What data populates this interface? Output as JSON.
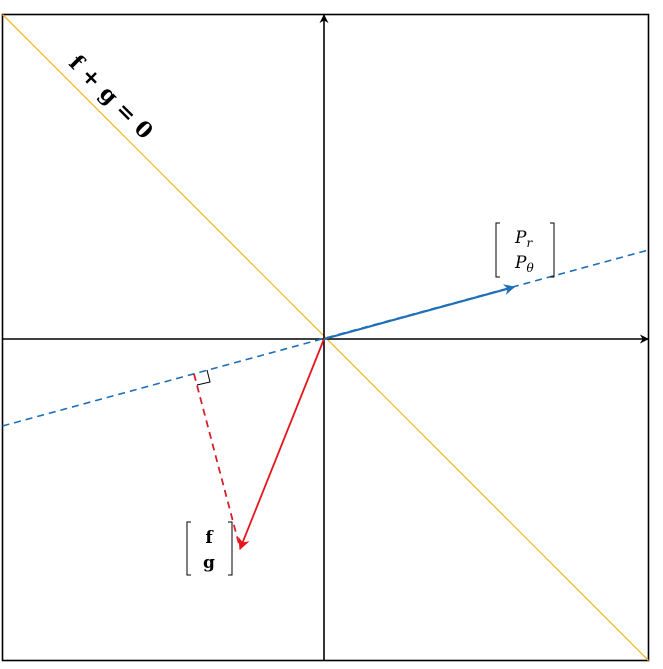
{
  "diagram": {
    "line_label": "f + g = 0",
    "p_vector": {
      "top": "P",
      "top_sub": "r",
      "bottom": "P",
      "bottom_sub": "θ"
    },
    "fg_vector": {
      "top": "f",
      "bottom": "g"
    },
    "colors": {
      "frame": "#000000",
      "axes": "#000000",
      "diagonal": "#f5b731",
      "p_line": "#1f6fb8",
      "fg_vector": "#e8141b",
      "projection": "#d6202a"
    }
  }
}
